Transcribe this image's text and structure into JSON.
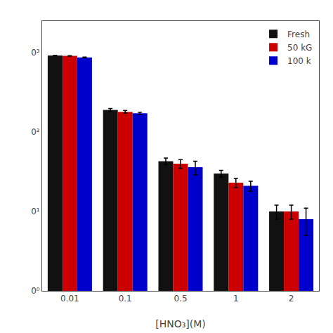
{
  "chart_data": {
    "type": "bar",
    "categories": [
      "0.01",
      "0.1",
      "0.5",
      "1",
      "2"
    ],
    "series": [
      {
        "name": "Fresh",
        "color": "#111111",
        "values": [
          920,
          190,
          43,
          30,
          10
        ],
        "errors": [
          5,
          8,
          4,
          3,
          2
        ]
      },
      {
        "name": "50 kG",
        "color": "#cc0000",
        "values": [
          910,
          180,
          40,
          23,
          10
        ],
        "errors": [
          6,
          7,
          5,
          3,
          2
        ]
      },
      {
        "name": "100 k",
        "color": "#0000cc",
        "values": [
          870,
          172,
          36,
          21,
          8
        ],
        "errors": [
          8,
          6,
          7,
          3,
          3
        ]
      }
    ],
    "xlabel": "[HNO₃](M)",
    "log": "y",
    "ylim": [
      1,
      2500
    ],
    "yticks": [
      {
        "value": 1,
        "label": "0⁰"
      },
      {
        "value": 10,
        "label": "0¹"
      },
      {
        "value": 100,
        "label": "0²"
      },
      {
        "value": 1000,
        "label": "0³"
      }
    ],
    "grid": false,
    "legend": "upper right"
  }
}
